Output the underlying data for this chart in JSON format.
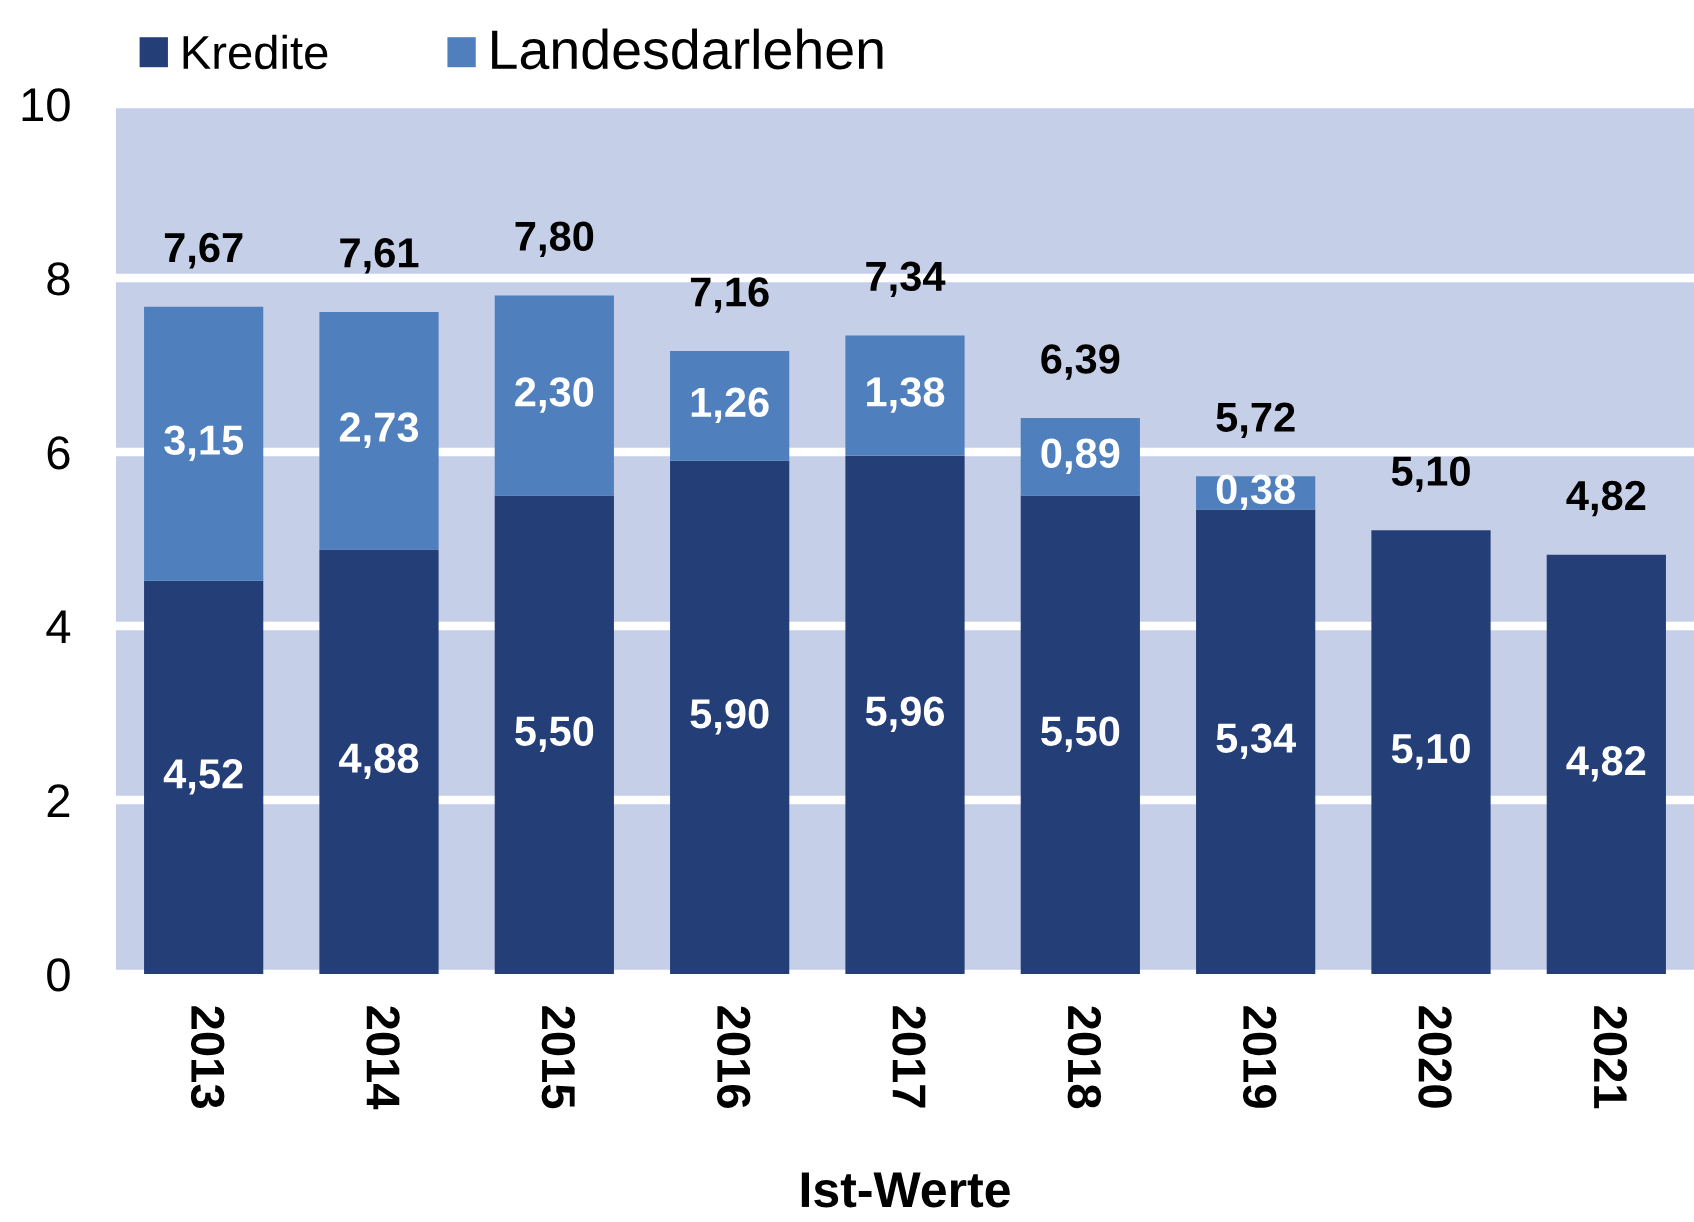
{
  "chart_data": {
    "type": "bar",
    "stacked": true,
    "categories": [
      "2013",
      "2014",
      "2015",
      "2016",
      "2017",
      "2018",
      "2019",
      "2020",
      "2021"
    ],
    "xlabel": "Ist-Werte",
    "ylim": [
      0,
      10
    ],
    "yticks": [
      0,
      2,
      4,
      6,
      8,
      10
    ],
    "grid": "y",
    "legend": "top left",
    "series": [
      {
        "name": "Kredite",
        "color": "#243f78",
        "values": [
          4.52,
          4.88,
          5.5,
          5.9,
          5.96,
          5.5,
          5.34,
          5.1,
          4.82
        ],
        "value_labels": [
          "4,52",
          "4,88",
          "5,50",
          "5,90",
          "5,96",
          "5,50",
          "5,34",
          "5,10",
          "4,82"
        ]
      },
      {
        "name": "Landesdarlehen",
        "color": "#4f80bd",
        "values": [
          3.15,
          2.73,
          2.3,
          1.26,
          1.38,
          0.89,
          0.38,
          null,
          null
        ],
        "value_labels": [
          "3,15",
          "2,73",
          "2,30",
          "1,26",
          "1,38",
          "0,89",
          "0,38",
          null,
          null
        ]
      }
    ],
    "totals": [
      "7,67",
      "7,61",
      "7,80",
      "7,16",
      "7,34",
      "6,39",
      "5,72",
      "5,10",
      "4,82"
    ]
  }
}
